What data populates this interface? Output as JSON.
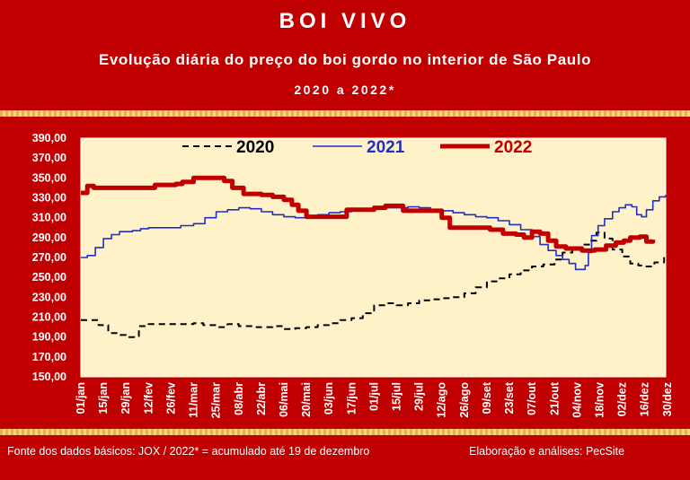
{
  "header": {
    "title": "BOI VIVO",
    "subtitle": "Evolução diária do preço do boi gordo no interior de São Paulo",
    "period": "2020 a 2022*"
  },
  "footer": {
    "source": "Fonte dos dados básicos: JOX   /  2022* = acumulado até 19 de dezembro",
    "credit": "Elaboração e análises: PecSite"
  },
  "colors": {
    "background": "#c00000",
    "plot_area": "#fff2c8",
    "s2020": "#000000",
    "s2021": "#1f2fc7",
    "s2022": "#c00000"
  },
  "chart_data": {
    "type": "line",
    "title": "",
    "xlabel": "",
    "ylabel": "",
    "ylim": [
      150,
      390
    ],
    "xlim": [
      1,
      364
    ],
    "y_ticks": [
      "390,00",
      "370,00",
      "350,00",
      "330,00",
      "310,00",
      "290,00",
      "270,00",
      "250,00",
      "230,00",
      "210,00",
      "190,00",
      "170,00",
      "150,00"
    ],
    "x_ticks": [
      {
        "day": 1,
        "label": "01/jan"
      },
      {
        "day": 15,
        "label": "15/jan"
      },
      {
        "day": 29,
        "label": "29/jan"
      },
      {
        "day": 43,
        "label": "12/fev"
      },
      {
        "day": 57,
        "label": "26/fev"
      },
      {
        "day": 71,
        "label": "11/mar"
      },
      {
        "day": 85,
        "label": "25/mar"
      },
      {
        "day": 99,
        "label": "08/abr"
      },
      {
        "day": 113,
        "label": "22/abr"
      },
      {
        "day": 127,
        "label": "06/mai"
      },
      {
        "day": 141,
        "label": "20/mai"
      },
      {
        "day": 155,
        "label": "03/jun"
      },
      {
        "day": 169,
        "label": "17/jun"
      },
      {
        "day": 183,
        "label": "01/jul"
      },
      {
        "day": 197,
        "label": "15/jul"
      },
      {
        "day": 211,
        "label": "29/jul"
      },
      {
        "day": 225,
        "label": "12/ago"
      },
      {
        "day": 239,
        "label": "26/ago"
      },
      {
        "day": 253,
        "label": "09/set"
      },
      {
        "day": 267,
        "label": "23/set"
      },
      {
        "day": 281,
        "label": "07/out"
      },
      {
        "day": 295,
        "label": "21/out"
      },
      {
        "day": 309,
        "label": "04/nov"
      },
      {
        "day": 323,
        "label": "18/nov"
      },
      {
        "day": 337,
        "label": "02/dez"
      },
      {
        "day": 351,
        "label": "16/dez"
      },
      {
        "day": 365,
        "label": "30/dez"
      }
    ],
    "legend_position": "top",
    "series": [
      {
        "name": "2020",
        "style": "dashed",
        "points": [
          [
            1,
            207
          ],
          [
            8,
            207
          ],
          [
            12,
            202
          ],
          [
            18,
            194
          ],
          [
            25,
            192
          ],
          [
            29,
            190
          ],
          [
            34,
            191
          ],
          [
            37,
            201
          ],
          [
            43,
            203
          ],
          [
            57,
            203
          ],
          [
            71,
            204
          ],
          [
            77,
            202
          ],
          [
            85,
            200
          ],
          [
            92,
            203
          ],
          [
            99,
            201
          ],
          [
            110,
            200
          ],
          [
            120,
            201
          ],
          [
            127,
            198
          ],
          [
            134,
            199
          ],
          [
            141,
            200
          ],
          [
            148,
            202
          ],
          [
            155,
            204
          ],
          [
            162,
            207
          ],
          [
            169,
            209
          ],
          [
            176,
            214
          ],
          [
            183,
            222
          ],
          [
            190,
            224
          ],
          [
            197,
            222
          ],
          [
            204,
            224
          ],
          [
            211,
            227
          ],
          [
            218,
            228
          ],
          [
            225,
            229
          ],
          [
            232,
            230
          ],
          [
            239,
            234
          ],
          [
            246,
            240
          ],
          [
            253,
            246
          ],
          [
            260,
            249
          ],
          [
            267,
            253
          ],
          [
            274,
            257
          ],
          [
            281,
            261
          ],
          [
            288,
            263
          ],
          [
            295,
            268
          ],
          [
            300,
            275
          ],
          [
            306,
            280
          ],
          [
            312,
            283
          ],
          [
            317,
            287
          ],
          [
            321,
            295
          ],
          [
            326,
            289
          ],
          [
            331,
            278
          ],
          [
            337,
            271
          ],
          [
            342,
            264
          ],
          [
            347,
            262
          ],
          [
            352,
            261
          ],
          [
            357,
            265
          ],
          [
            363,
            273
          ]
        ]
      },
      {
        "name": "2021",
        "style": "solid",
        "points": [
          [
            1,
            270
          ],
          [
            5,
            272
          ],
          [
            10,
            280
          ],
          [
            15,
            289
          ],
          [
            20,
            293
          ],
          [
            25,
            296
          ],
          [
            33,
            297
          ],
          [
            38,
            299
          ],
          [
            43,
            300
          ],
          [
            57,
            300
          ],
          [
            63,
            302
          ],
          [
            71,
            304
          ],
          [
            78,
            310
          ],
          [
            85,
            316
          ],
          [
            92,
            318
          ],
          [
            99,
            320
          ],
          [
            106,
            319
          ],
          [
            113,
            316
          ],
          [
            120,
            313
          ],
          [
            127,
            311
          ],
          [
            134,
            310
          ],
          [
            141,
            310
          ],
          [
            148,
            313
          ],
          [
            155,
            315
          ],
          [
            162,
            316
          ],
          [
            169,
            318
          ],
          [
            176,
            319
          ],
          [
            183,
            320
          ],
          [
            197,
            320
          ],
          [
            204,
            321
          ],
          [
            211,
            320
          ],
          [
            218,
            318
          ],
          [
            225,
            317
          ],
          [
            232,
            315
          ],
          [
            239,
            313
          ],
          [
            246,
            311
          ],
          [
            253,
            310
          ],
          [
            260,
            307
          ],
          [
            267,
            303
          ],
          [
            274,
            298
          ],
          [
            281,
            291
          ],
          [
            286,
            283
          ],
          [
            291,
            277
          ],
          [
            296,
            272
          ],
          [
            300,
            268
          ],
          [
            304,
            264
          ],
          [
            308,
            258
          ],
          [
            311,
            258
          ],
          [
            314,
            262
          ],
          [
            316,
            275
          ],
          [
            318,
            292
          ],
          [
            322,
            302
          ],
          [
            326,
            309
          ],
          [
            331,
            316
          ],
          [
            335,
            320
          ],
          [
            339,
            323
          ],
          [
            343,
            321
          ],
          [
            346,
            313
          ],
          [
            349,
            311
          ],
          [
            352,
            318
          ],
          [
            356,
            327
          ],
          [
            360,
            331
          ],
          [
            364,
            333
          ]
        ]
      },
      {
        "name": "2022",
        "style": "thick",
        "points": [
          [
            1,
            335
          ],
          [
            5,
            342
          ],
          [
            9,
            340
          ],
          [
            15,
            340
          ],
          [
            43,
            340
          ],
          [
            47,
            343
          ],
          [
            60,
            344
          ],
          [
            64,
            346
          ],
          [
            71,
            350
          ],
          [
            85,
            350
          ],
          [
            90,
            347
          ],
          [
            95,
            340
          ],
          [
            102,
            334
          ],
          [
            113,
            333
          ],
          [
            120,
            331
          ],
          [
            127,
            328
          ],
          [
            132,
            323
          ],
          [
            136,
            317
          ],
          [
            141,
            311
          ],
          [
            162,
            311
          ],
          [
            166,
            318
          ],
          [
            183,
            320
          ],
          [
            190,
            322
          ],
          [
            197,
            322
          ],
          [
            201,
            317
          ],
          [
            220,
            317
          ],
          [
            225,
            310
          ],
          [
            230,
            300
          ],
          [
            246,
            300
          ],
          [
            255,
            298
          ],
          [
            263,
            294
          ],
          [
            271,
            293
          ],
          [
            276,
            290
          ],
          [
            281,
            296
          ],
          [
            286,
            294
          ],
          [
            291,
            287
          ],
          [
            296,
            281
          ],
          [
            302,
            279
          ],
          [
            312,
            277
          ],
          [
            320,
            278
          ],
          [
            327,
            282
          ],
          [
            333,
            285
          ],
          [
            338,
            287
          ],
          [
            342,
            290
          ],
          [
            348,
            291
          ],
          [
            352,
            286
          ],
          [
            356,
            288
          ]
        ]
      }
    ]
  }
}
